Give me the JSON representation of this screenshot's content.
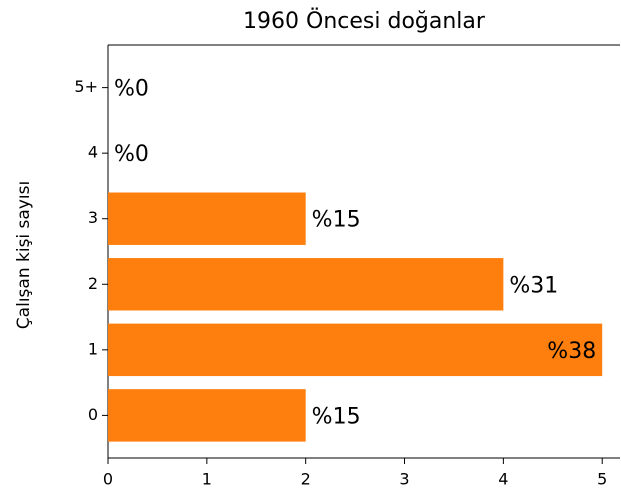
{
  "chart_data": {
    "type": "barh",
    "title": "1960 Öncesi doğanlar",
    "y_label": "Çalışan kişi sayısı",
    "categories": [
      "0",
      "1",
      "2",
      "3",
      "4",
      "5+"
    ],
    "values": [
      2,
      5,
      4,
      2,
      0,
      0
    ],
    "value_labels": [
      "%15",
      "%38",
      "%31",
      "%15",
      "%0",
      "%0"
    ],
    "color": "#ff7f0e",
    "xlim": [
      0,
      5.18
    ],
    "xticks": [
      0,
      1,
      2,
      3,
      4,
      5
    ],
    "grid": false
  }
}
